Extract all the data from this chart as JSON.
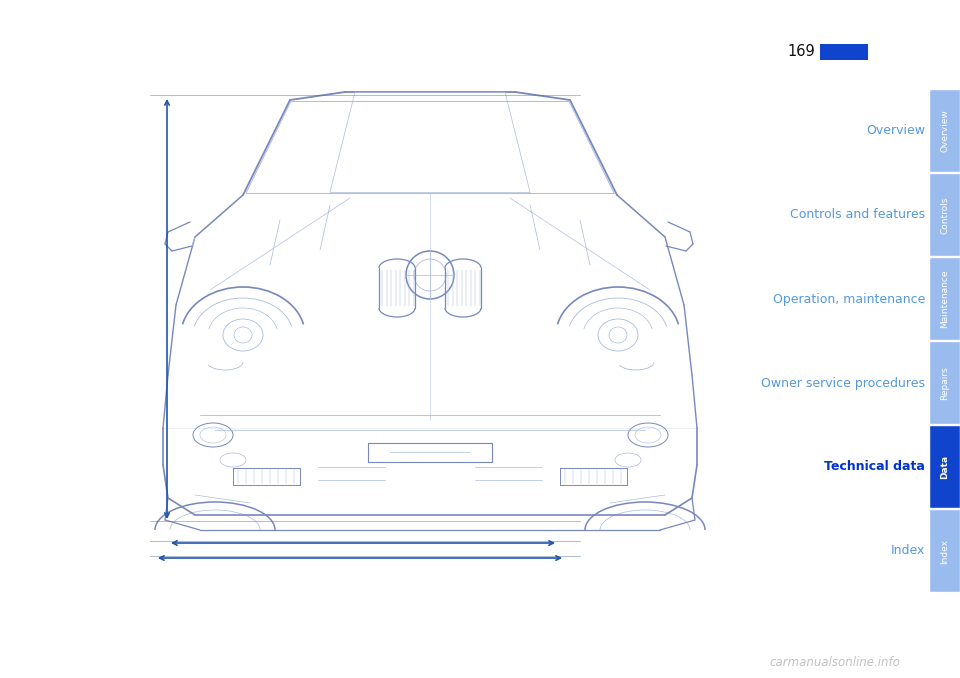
{
  "page_number": "169",
  "page_bg": "#ffffff",
  "nav_items": [
    {
      "label": "Overview",
      "tab_text": "Overview",
      "active": false
    },
    {
      "label": "Controls and features",
      "tab_text": "Controls",
      "active": false
    },
    {
      "label": "Operation, maintenance",
      "tab_text": "Maintenance",
      "active": false
    },
    {
      "label": "Owner service procedures",
      "tab_text": "Repairs",
      "active": false
    },
    {
      "label": "Technical data",
      "tab_text": "Data",
      "active": true
    },
    {
      "label": "Index",
      "tab_text": "Index",
      "active": false
    }
  ],
  "nav_label_color": "#5599dd",
  "nav_active_label_color": "#0033cc",
  "tab_active_color": "#1144cc",
  "tab_inactive_color": "#99bbee",
  "tab_text_color": "#ffffff",
  "page_num_color": "#111111",
  "page_rect_color": "#1144cc",
  "watermark": "carmanualsonline.info",
  "watermark_color": "#bbbbbb",
  "drawing_color": "#7788bb",
  "drawing_light_color": "#aabbdd",
  "arrow_color": "#2255aa",
  "dim_line_color": "#4466aa"
}
